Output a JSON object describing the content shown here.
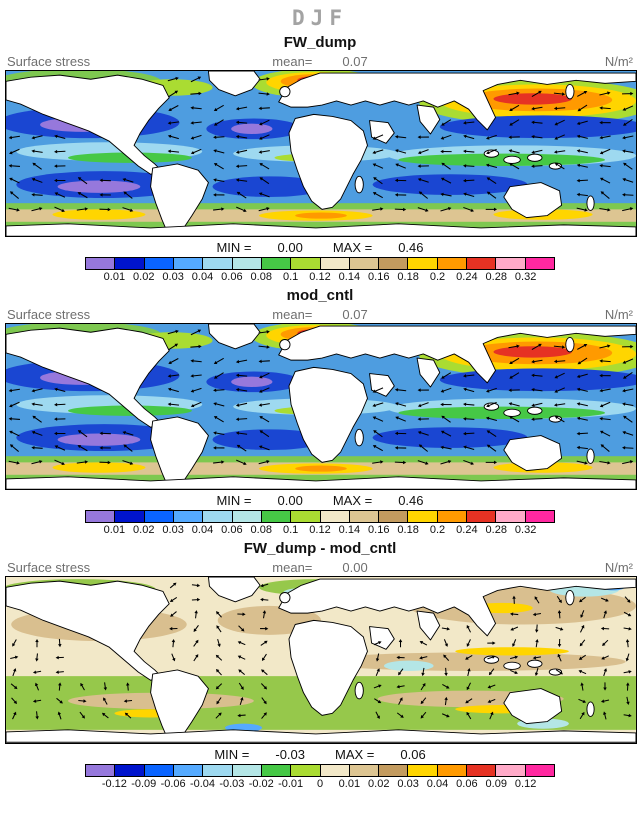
{
  "page_title": "DJF",
  "panels": [
    {
      "title": "FW_dump",
      "field_label": "Surface stress",
      "mean_label": "mean=",
      "mean_value": "0.07",
      "units": "N/m²",
      "min_label": "MIN =",
      "min_value": "0.00",
      "max_label": "MAX =",
      "max_value": "0.46"
    },
    {
      "title": "mod_cntl",
      "field_label": "Surface stress",
      "mean_label": "mean=",
      "mean_value": "0.07",
      "units": "N/m²",
      "min_label": "MIN =",
      "min_value": "0.00",
      "max_label": "MAX =",
      "max_value": "0.46"
    },
    {
      "title": "FW_dump - mod_cntl",
      "field_label": "Surface stress",
      "mean_label": "mean=",
      "mean_value": "0.00",
      "units": "N/m²",
      "min_label": "MIN =",
      "min_value": "-0.03",
      "max_label": "MAX =",
      "max_value": "0.06"
    }
  ],
  "colorbars": {
    "main": {
      "colors": [
        "#9678dc",
        "#0014cd",
        "#0a64ff",
        "#55aaff",
        "#9ed9f0",
        "#b4e6e6",
        "#46c846",
        "#aadc32",
        "#f2e8c8",
        "#ddc592",
        "#c39b5f",
        "#ffd500",
        "#ff9a00",
        "#e63223",
        "#ffaac8",
        "#ff28a0"
      ],
      "labels": [
        "0.01",
        "0.02",
        "0.03",
        "0.04",
        "0.06",
        "0.08",
        "0.1",
        "0.12",
        "0.14",
        "0.16",
        "0.18",
        "0.2",
        "0.24",
        "0.28",
        "0.32"
      ]
    },
    "diff": {
      "colors": [
        "#9678dc",
        "#0014cd",
        "#0a64ff",
        "#55aaff",
        "#9ed9f0",
        "#b4e6e6",
        "#46c846",
        "#aadc32",
        "#f2e8c8",
        "#ddc592",
        "#c39b5f",
        "#ffd500",
        "#ff9a00",
        "#e63223",
        "#ffaac8",
        "#ff28a0"
      ],
      "labels": [
        "-0.12",
        "-0.09",
        "-0.06",
        "-0.04",
        "-0.03",
        "-0.02",
        "-0.01",
        "0",
        "0.01",
        "0.02",
        "0.03",
        "0.04",
        "0.06",
        "0.09",
        "0.12"
      ]
    }
  },
  "chart_data": {
    "type": "heatmap",
    "season": "DJF",
    "variable": "Surface stress",
    "units": "N/m²",
    "overlay": "vector-arrows",
    "panels": [
      {
        "title": "FW_dump",
        "mean": 0.07,
        "min": 0.0,
        "max": 0.46,
        "levels": [
          0.01,
          0.02,
          0.03,
          0.04,
          0.06,
          0.08,
          0.1,
          0.12,
          0.14,
          0.16,
          0.18,
          0.2,
          0.24,
          0.28,
          0.32
        ]
      },
      {
        "title": "mod_cntl",
        "mean": 0.07,
        "min": 0.0,
        "max": 0.46,
        "levels": [
          0.01,
          0.02,
          0.03,
          0.04,
          0.06,
          0.08,
          0.1,
          0.12,
          0.14,
          0.16,
          0.18,
          0.2,
          0.24,
          0.28,
          0.32
        ]
      },
      {
        "title": "FW_dump - mod_cntl",
        "mean": 0.0,
        "min": -0.03,
        "max": 0.06,
        "levels": [
          -0.12,
          -0.09,
          -0.06,
          -0.04,
          -0.03,
          -0.02,
          -0.01,
          0,
          0.01,
          0.02,
          0.03,
          0.04,
          0.06,
          0.09,
          0.12
        ]
      }
    ]
  }
}
